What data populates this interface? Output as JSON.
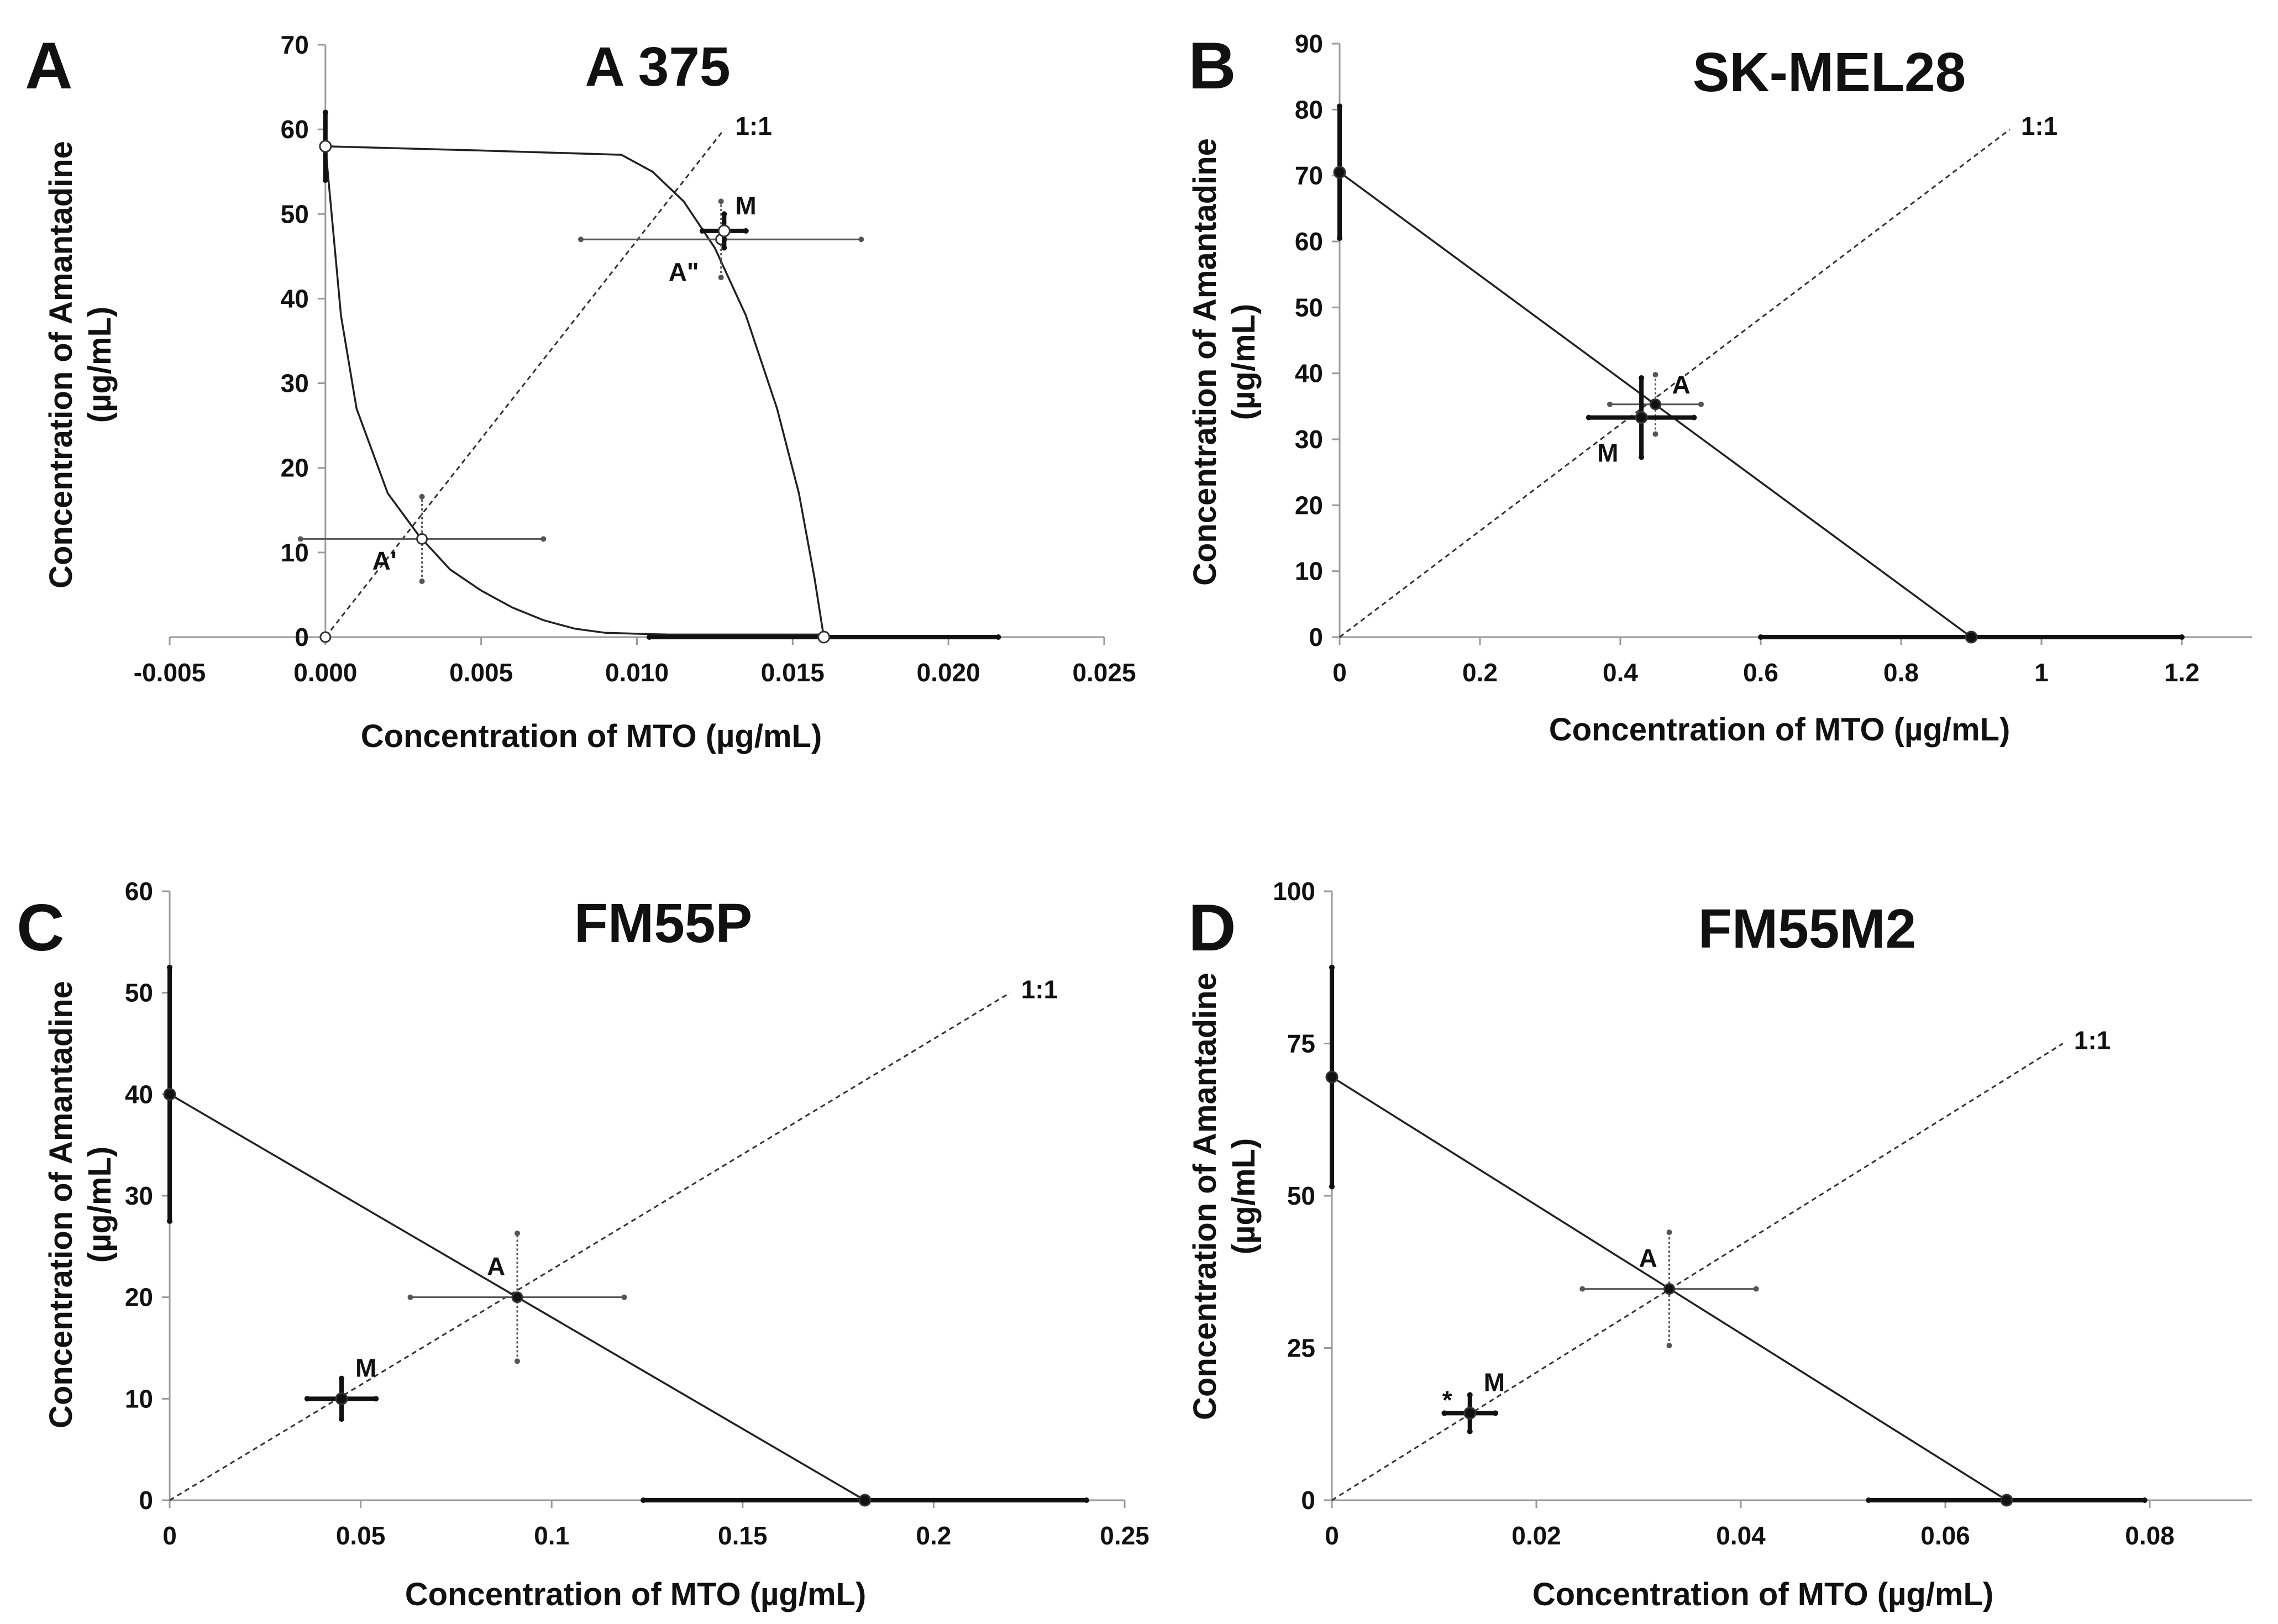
{
  "chart_data": [
    {
      "type": "scatter",
      "panel_label": "A",
      "title": "A 375",
      "xlabel": "Concentration of MTO (µg/mL)",
      "ylabel_line1": "Concentration of Amantadine",
      "ylabel_line2": "(µg/mL)",
      "xlim": [
        -0.005,
        0.025
      ],
      "ylim": [
        0,
        70
      ],
      "xticks": [
        -0.005,
        0,
        0.005,
        0.01,
        0.015,
        0.02,
        0.025
      ],
      "xtick_labels": [
        "-0.005",
        "0.000",
        "0.005",
        "0.010",
        "0.015",
        "0.020",
        "0.025"
      ],
      "yticks": [
        0,
        10,
        20,
        30,
        40,
        50,
        60,
        70
      ],
      "ytick_labels": [
        "0",
        "10",
        "20",
        "30",
        "40",
        "50",
        "60",
        "70"
      ],
      "ratio_line": {
        "label": "1:1",
        "from": [
          0,
          0
        ],
        "to": [
          0.0128,
          60
        ]
      },
      "isobolograms": [
        {
          "name": "lower curve",
          "points": [
            [
              0,
              58
            ],
            [
              0.0005,
              38
            ],
            [
              0.001,
              27
            ],
            [
              0.002,
              17
            ],
            [
              0.003,
              12
            ],
            [
              0.004,
              8
            ],
            [
              0.005,
              5.5
            ],
            [
              0.006,
              3.5
            ],
            [
              0.007,
              2
            ],
            [
              0.008,
              1
            ],
            [
              0.009,
              0.5
            ],
            [
              0.011,
              0.3
            ],
            [
              0.016,
              0.3
            ]
          ]
        },
        {
          "name": "upper curve",
          "points": [
            [
              0,
              58
            ],
            [
              0.005,
              57.5
            ],
            [
              0.0095,
              57
            ],
            [
              0.0105,
              55
            ],
            [
              0.0115,
              51.5
            ],
            [
              0.0125,
              46
            ],
            [
              0.0135,
              38
            ],
            [
              0.0145,
              27
            ],
            [
              0.0152,
              17
            ],
            [
              0.0157,
              7
            ],
            [
              0.016,
              0
            ]
          ]
        }
      ],
      "points": [
        {
          "name": "A'",
          "label": "A'",
          "x": 0.0031,
          "y": 11.6,
          "xerr": 0.0039,
          "yerr": 5,
          "style": "open-thin"
        },
        {
          "name": "A\"",
          "label": "A\"",
          "x": 0.0127,
          "y": 47,
          "xerr": 0.0045,
          "yerr": 4.5,
          "style": "open-thin"
        },
        {
          "name": "M",
          "label": "M",
          "x": 0.0128,
          "y": 48,
          "xerr": 0.0007,
          "yerr": 2,
          "style": "open-bold"
        },
        {
          "name": "MTO alone",
          "x": 0.016,
          "y": 0,
          "xerr": 0.0056,
          "yerr": 0,
          "style": "open-bold"
        },
        {
          "name": "Amantadine alone",
          "x": 0,
          "y": 58,
          "xerr": 0,
          "yerr": 4,
          "style": "open-bold"
        },
        {
          "name": "origin",
          "x": 0,
          "y": 0,
          "xerr": 0,
          "yerr": 0,
          "style": "open-thin"
        }
      ]
    },
    {
      "type": "scatter",
      "panel_label": "B",
      "title": "SK-MEL28",
      "xlabel": "Concentration of MTO (µg/mL)",
      "ylabel_line1": "Concentration of Amantadine",
      "ylabel_line2": "(µg/mL)",
      "xlim": [
        0,
        1.3
      ],
      "ylim": [
        0,
        90
      ],
      "xticks": [
        0,
        0.2,
        0.4,
        0.6,
        0.8,
        1,
        1.2
      ],
      "xtick_labels": [
        "0",
        "0.2",
        "0.4",
        "0.6",
        "0.8",
        "1",
        "1.2"
      ],
      "yticks": [
        0,
        10,
        20,
        30,
        40,
        50,
        60,
        70,
        80,
        90
      ],
      "ytick_labels": [
        "0",
        "10",
        "20",
        "30",
        "40",
        "50",
        "60",
        "70",
        "80",
        "90"
      ],
      "ratio_line": {
        "label": "1:1",
        "from": [
          0,
          0
        ],
        "to": [
          0.955,
          77
        ]
      },
      "isobolograms": [
        {
          "name": "additivity line",
          "points": [
            [
              0,
              70.5
            ],
            [
              0.9,
              0
            ]
          ]
        }
      ],
      "points": [
        {
          "name": "A",
          "label": "A",
          "x": 0.45,
          "y": 35.3,
          "xerr": 0.065,
          "yerr": 4.5,
          "style": "solid-thin"
        },
        {
          "name": "M",
          "label": "M",
          "x": 0.43,
          "y": 33.3,
          "xerr": 0.075,
          "yerr": 6,
          "style": "solid-bold"
        },
        {
          "name": "MTO alone",
          "x": 0.9,
          "y": 0,
          "xerr": 0.3,
          "yerr": 0,
          "style": "solid-bold"
        },
        {
          "name": "Amantadine alone",
          "x": 0,
          "y": 70.5,
          "xerr": 0,
          "yerr": 10,
          "style": "solid-bold"
        }
      ]
    },
    {
      "type": "scatter",
      "panel_label": "C",
      "title": "FM55P",
      "xlabel": "Concentration of MTO (µg/mL)",
      "ylabel_line1": "Concentration of Amantadine",
      "ylabel_line2": "(µg/mL)",
      "xlim": [
        0,
        0.25
      ],
      "ylim": [
        0,
        60
      ],
      "xticks": [
        0,
        0.05,
        0.1,
        0.15,
        0.2,
        0.25
      ],
      "xtick_labels": [
        "0",
        "0.05",
        "0.1",
        "0.15",
        "0.2",
        "0.25"
      ],
      "yticks": [
        0,
        10,
        20,
        30,
        40,
        50,
        60
      ],
      "ytick_labels": [
        "0",
        "10",
        "20",
        "30",
        "40",
        "50",
        "60"
      ],
      "ratio_line": {
        "label": "1:1",
        "from": [
          0,
          0
        ],
        "to": [
          0.22,
          50
        ]
      },
      "isobolograms": [
        {
          "name": "additivity line",
          "points": [
            [
              0,
              40
            ],
            [
              0.182,
              0
            ]
          ]
        }
      ],
      "points": [
        {
          "name": "A",
          "label": "A",
          "x": 0.091,
          "y": 20,
          "xerr": 0.028,
          "yerr": 6.3,
          "style": "solid-thin"
        },
        {
          "name": "M",
          "label": "M",
          "x": 0.045,
          "y": 10,
          "xerr": 0.009,
          "yerr": 2,
          "style": "solid-bold"
        },
        {
          "name": "MTO alone",
          "x": 0.182,
          "y": 0,
          "xerr": 0.058,
          "yerr": 0,
          "style": "solid-bold"
        },
        {
          "name": "Amantadine alone",
          "x": 0,
          "y": 40,
          "xerr": 0,
          "yerr": 12.5,
          "style": "solid-bold"
        }
      ]
    },
    {
      "type": "scatter",
      "panel_label": "D",
      "title": "FM55M2",
      "xlabel": "Concentration of MTO (µg/mL)",
      "ylabel_line1": "Concentration of Amantadine",
      "ylabel_line2": "(µg/mL)",
      "xlim": [
        0,
        0.09
      ],
      "ylim": [
        0,
        100
      ],
      "xticks": [
        0,
        0.02,
        0.04,
        0.06,
        0.08
      ],
      "xtick_labels": [
        "0",
        "0.02",
        "0.04",
        "0.06",
        "0.08"
      ],
      "yticks": [
        0,
        25,
        50,
        75,
        100
      ],
      "ytick_labels": [
        "0",
        "25",
        "50",
        "75",
        "100"
      ],
      "ratio_line": {
        "label": "1:1",
        "from": [
          0,
          0
        ],
        "to": [
          0.0715,
          75
        ]
      },
      "isobolograms": [
        {
          "name": "additivity line",
          "points": [
            [
              0,
              69.5
            ],
            [
              0.066,
              0
            ]
          ]
        }
      ],
      "points": [
        {
          "name": "A",
          "label": "A",
          "x": 0.033,
          "y": 34.7,
          "xerr": 0.0085,
          "yerr": 9.3,
          "style": "solid-thin"
        },
        {
          "name": "M",
          "label": "M",
          "x": 0.0135,
          "y": 14.3,
          "xerr": 0.0025,
          "yerr": 3,
          "style": "solid-bold",
          "significance": "*"
        },
        {
          "name": "MTO alone",
          "x": 0.066,
          "y": 0,
          "xerr": 0.0135,
          "yerr": 0,
          "style": "solid-bold"
        },
        {
          "name": "Amantadine alone",
          "x": 0,
          "y": 69.5,
          "xerr": 0,
          "yerr": 18,
          "style": "solid-bold"
        }
      ]
    }
  ]
}
